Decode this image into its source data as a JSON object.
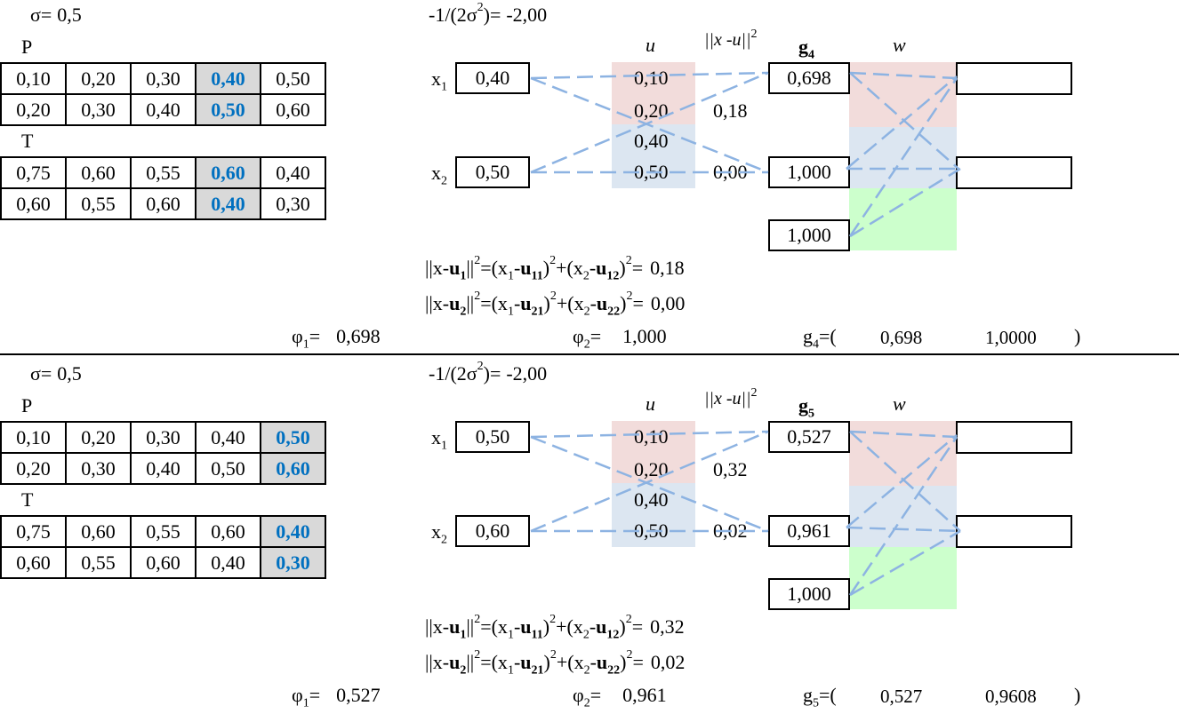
{
  "colors": {
    "dash_line": "#8db3e2",
    "u_top_shade": "#f2dcdb",
    "u_bottom_shade": "#dce6f1",
    "w_top_shade": "#f2dcdb",
    "w_mid_shade": "#dce6f1",
    "w_bottom_shade": "#ccffcc",
    "highlight_cell_bg": "#d9d9d9",
    "highlight_text": "#0070c0"
  },
  "panels": [
    {
      "sigma_label": "σ=",
      "sigma": "0,5",
      "coef_label": "-1/(2σ",
      "coef_sup": "2",
      "coef_label_end": ")=",
      "coef": "-2,00",
      "p_label": "P",
      "t_label": "T",
      "p_rows": [
        [
          "0,10",
          "0,20",
          "0,30",
          "0,40",
          "0,50"
        ],
        [
          "0,20",
          "0,30",
          "0,40",
          "0,50",
          "0,60"
        ]
      ],
      "t_rows": [
        [
          "0,75",
          "0,60",
          "0,55",
          "0,60",
          "0,40"
        ],
        [
          "0,60",
          "0,55",
          "0,60",
          "0,40",
          "0,30"
        ]
      ],
      "highlight_col": 3,
      "x_labels": [
        "x",
        "x"
      ],
      "x_subs": [
        "1",
        "2"
      ],
      "x_values": [
        "0,40",
        "0,50"
      ],
      "u_header": "u",
      "u_values": [
        "0,10",
        "0,20",
        "0,40",
        "0,50"
      ],
      "dist_header": "||x -u||",
      "dist_sup": "2",
      "distances": [
        "0,18",
        "0,00"
      ],
      "g_header": "g",
      "g_header_sub": "4",
      "g_values": [
        "0,698",
        "1,000",
        "1,000"
      ],
      "w_header": "w",
      "formula1_value": "0,18",
      "formula2_value": "0,00",
      "phi1_label": "φ",
      "phi1_sub": "1",
      "phi1_eq": "=",
      "phi1": "0,698",
      "phi2_label": "φ",
      "phi2_sub": "2",
      "phi2_eq": "=",
      "phi2": "1,000",
      "g_vec_label": "g",
      "g_vec_sub": "4",
      "g_vec_open": "=(",
      "g_vec": [
        "0,698",
        "1,0000"
      ],
      "g_vec_close": ")"
    },
    {
      "sigma_label": "σ=",
      "sigma": "0,5",
      "coef_label": "-1/(2σ",
      "coef_sup": "2",
      "coef_label_end": ")=",
      "coef": "-2,00",
      "p_label": "P",
      "t_label": "T",
      "p_rows": [
        [
          "0,10",
          "0,20",
          "0,30",
          "0,40",
          "0,50"
        ],
        [
          "0,20",
          "0,30",
          "0,40",
          "0,50",
          "0,60"
        ]
      ],
      "t_rows": [
        [
          "0,75",
          "0,60",
          "0,55",
          "0,60",
          "0,40"
        ],
        [
          "0,60",
          "0,55",
          "0,60",
          "0,40",
          "0,30"
        ]
      ],
      "highlight_col": 4,
      "x_labels": [
        "x",
        "x"
      ],
      "x_subs": [
        "1",
        "2"
      ],
      "x_values": [
        "0,50",
        "0,60"
      ],
      "u_header": "u",
      "u_values": [
        "0,10",
        "0,20",
        "0,40",
        "0,50"
      ],
      "dist_header": "||x -u||",
      "dist_sup": "2",
      "distances": [
        "0,32",
        "0,02"
      ],
      "g_header": "g",
      "g_header_sub": "5",
      "g_values": [
        "0,527",
        "0,961",
        "1,000"
      ],
      "w_header": "w",
      "formula1_value": "0,32",
      "formula2_value": "0,02",
      "phi1_label": "φ",
      "phi1_sub": "1",
      "phi1_eq": "=",
      "phi1": "0,527",
      "phi2_label": "φ",
      "phi2_sub": "2",
      "phi2_eq": "=",
      "phi2": "0,961",
      "g_vec_label": "g",
      "g_vec_sub": "5",
      "g_vec_open": "=(",
      "g_vec": [
        "0,527",
        "0,9608"
      ],
      "g_vec_close": ")"
    }
  ],
  "formula": {
    "norm_open": "||x-",
    "u": "u",
    "norm_close": "||",
    "sq": "2",
    "eq_open": "=(x",
    "minus": "-",
    "paren_close": ")",
    "plus": "+(x",
    "eq": "=",
    "s1": "1",
    "s2": "2",
    "s11": "11",
    "s12": "12",
    "s21": "21",
    "s22": "22"
  }
}
